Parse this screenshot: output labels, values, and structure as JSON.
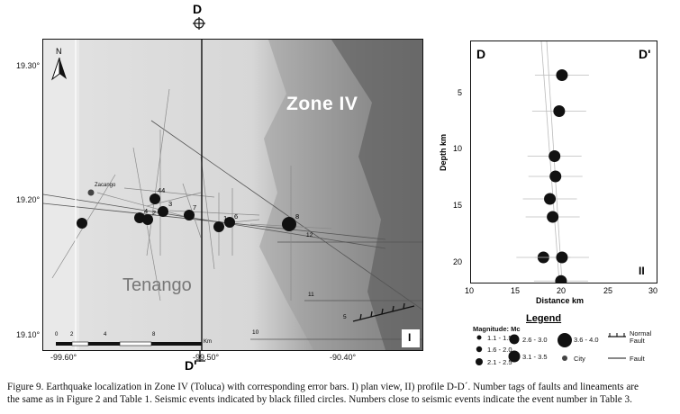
{
  "map": {
    "section_top": "D",
    "section_bottom": "D'",
    "zone_label": "Zone IV",
    "city_label": "Tenango",
    "town_label": "Zacango",
    "panel_label": "I",
    "lat_labels": [
      "19.30°",
      "19.20°",
      "19.10°"
    ],
    "lon_labels": [
      "-99.60°",
      "-99.50°",
      "-90.40°"
    ],
    "north": "N",
    "scale_ticks": [
      "0",
      "2",
      "4",
      "8"
    ],
    "scale_unit": "Km",
    "fault_tags": [
      "12",
      "11",
      "10",
      "5"
    ],
    "events": [
      {
        "n": "",
        "size": "m"
      },
      {
        "n": "44",
        "size": "m"
      },
      {
        "n": "4",
        "size": "m"
      },
      {
        "n": "2",
        "size": "m"
      },
      {
        "n": "3",
        "size": "m"
      },
      {
        "n": "7",
        "size": "m"
      },
      {
        "n": "1",
        "size": "m"
      },
      {
        "n": "6",
        "size": "m"
      },
      {
        "n": "8",
        "size": "l"
      }
    ]
  },
  "profile": {
    "left_label": "D",
    "right_label": "D'",
    "panel_label": "II",
    "ylabel": "Depth km",
    "xlabel": "Distance km",
    "yticks": [
      "5",
      "10",
      "15",
      "20"
    ],
    "xticks": [
      "10",
      "15",
      "20",
      "25",
      "30"
    ],
    "events": [
      {
        "distance": 19.8,
        "depth": 3.0
      },
      {
        "distance": 19.5,
        "depth": 6.2
      },
      {
        "distance": 19.0,
        "depth": 10.2
      },
      {
        "distance": 19.1,
        "depth": 12.0
      },
      {
        "distance": 18.5,
        "depth": 14.0
      },
      {
        "distance": 18.8,
        "depth": 15.6
      },
      {
        "distance": 17.8,
        "depth": 19.2
      },
      {
        "distance": 19.8,
        "depth": 19.2
      },
      {
        "distance": 19.7,
        "depth": 21.3
      }
    ]
  },
  "legend": {
    "title": "Legend",
    "magnitude_label": "Magnitude: Mc",
    "classes": [
      "1.1 - 1.5",
      "1.6 - 2.0",
      "2.1 - 2.5",
      "2.6 - 3.0",
      "3.1 - 3.5",
      "3.6 - 4.0"
    ],
    "normal_fault": "Normal\nFault",
    "fault": "Fault",
    "city": "City"
  },
  "caption": {
    "line1": "Figure 9. Earthquake localization in Zone IV (Toluca) with corresponding error bars. I) plan view, II) profile D-D´. Number tags of faults and lineaments are",
    "line2": "the same as in Figure 2 and Table 1. Seismic events indicated by black filled circles. Numbers close to seismic events indicate the event number in Table 3."
  }
}
